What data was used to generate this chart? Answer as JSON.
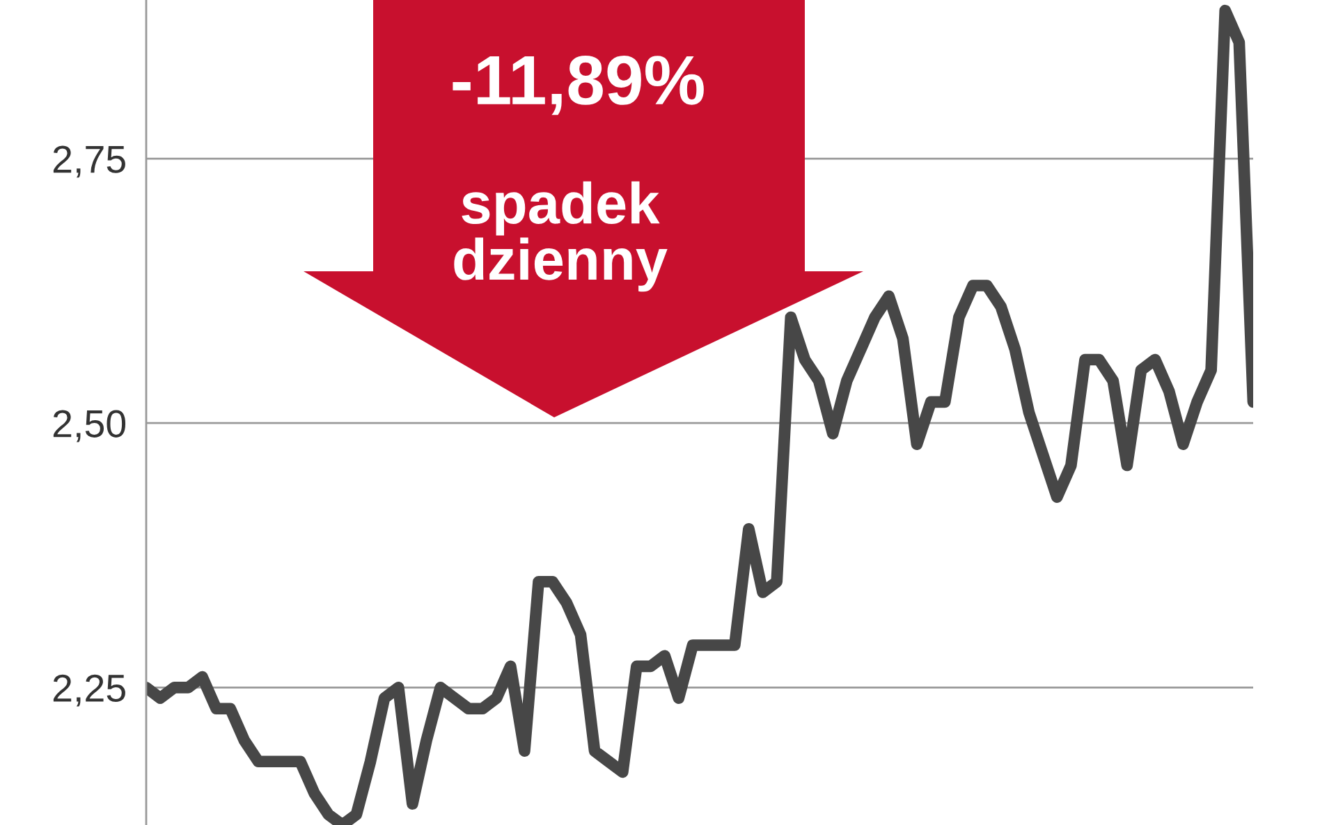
{
  "chart_data": {
    "type": "line",
    "categories": [
      null,
      null,
      null,
      null,
      null,
      null,
      null,
      null,
      null,
      null,
      null,
      null,
      null,
      null,
      null,
      null,
      null,
      null,
      null,
      null,
      null,
      null,
      null,
      null,
      null,
      null,
      null,
      null,
      null,
      null,
      null,
      null,
      null,
      null,
      null,
      null,
      null,
      null,
      null,
      null,
      null,
      null,
      null,
      null,
      null,
      null,
      null,
      null,
      null,
      null,
      null,
      null,
      null,
      null,
      null,
      null,
      null,
      null,
      null,
      null,
      null,
      null,
      null,
      null,
      null,
      null,
      null,
      null,
      null,
      null,
      null,
      null,
      null,
      null,
      null,
      null,
      null,
      null,
      null,
      null
    ],
    "series": [
      {
        "color": "#474747",
        "values": [
          2.25,
          2.24,
          2.25,
          2.25,
          2.26,
          2.23,
          2.23,
          2.2,
          2.18,
          2.18,
          2.18,
          2.18,
          2.15,
          2.13,
          2.12,
          2.13,
          2.18,
          2.24,
          2.25,
          2.14,
          2.2,
          2.25,
          2.24,
          2.23,
          2.23,
          2.24,
          2.27,
          2.19,
          2.35,
          2.35,
          2.33,
          2.3,
          2.19,
          2.18,
          2.17,
          2.27,
          2.27,
          2.28,
          2.24,
          2.29,
          2.29,
          2.29,
          2.29,
          2.4,
          2.34,
          2.35,
          2.6,
          2.56,
          2.54,
          2.49,
          2.54,
          2.57,
          2.6,
          2.62,
          2.58,
          2.48,
          2.52,
          2.52,
          2.6,
          2.63,
          2.63,
          2.61,
          2.57,
          2.51,
          2.47,
          2.43,
          2.46,
          2.56,
          2.56,
          2.54,
          2.46,
          2.55,
          2.56,
          2.53,
          2.48,
          2.52,
          2.55,
          2.89,
          2.86,
          2.52
        ]
      }
    ],
    "yticks": [
      {
        "value": 2.25,
        "label": "2,25"
      },
      {
        "value": 2.5,
        "label": "2,50"
      },
      {
        "value": 2.75,
        "label": "2,75"
      }
    ],
    "ylim": [
      2.12,
      2.9
    ],
    "grid": "y",
    "annotations": [
      "-11,89%\nspadek\ndzienny"
    ]
  }
}
